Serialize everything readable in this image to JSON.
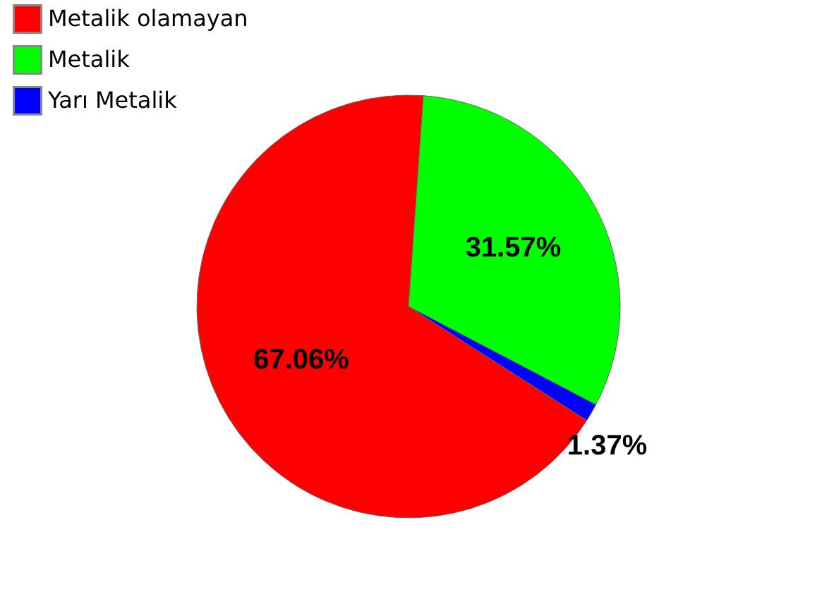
{
  "chart_data": {
    "type": "pie",
    "categories": [
      "Metalik olamayan",
      "Metalik",
      "Yarı Metalik"
    ],
    "values": [
      67.06,
      31.57,
      1.37
    ],
    "colors": [
      "#ff0000",
      "#00ff00",
      "#0000ff"
    ],
    "value_labels": [
      "67.06%",
      "31.57%",
      "1.37%"
    ],
    "legend": "top left"
  }
}
